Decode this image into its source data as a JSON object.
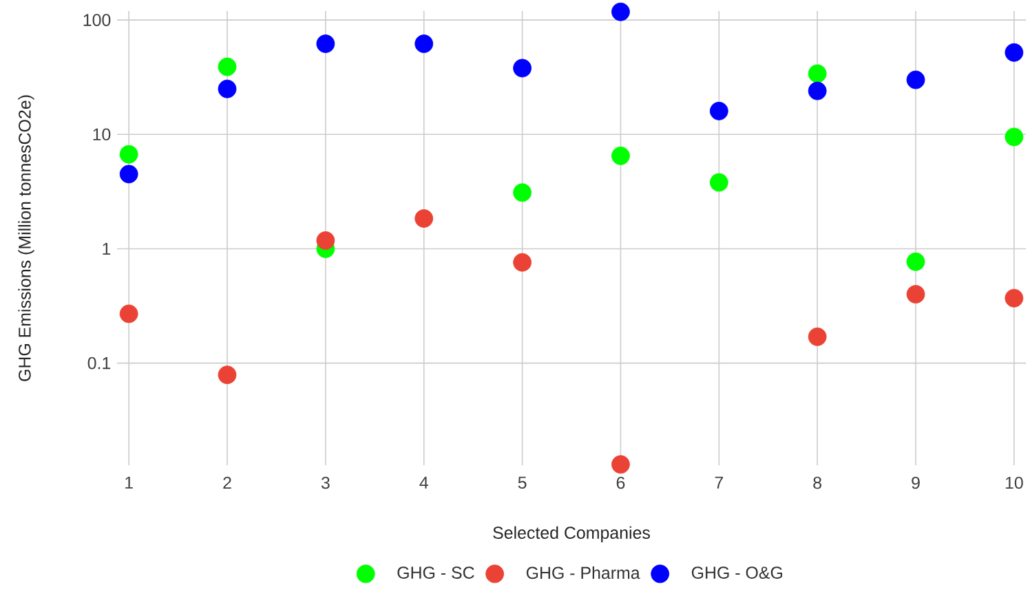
{
  "chart_data": {
    "type": "scatter",
    "xlabel": "Selected Companies",
    "ylabel": "GHG Emissions (Million tonnesCO2e)",
    "categories": [
      "1",
      "2",
      "3",
      "4",
      "5",
      "6",
      "7",
      "8",
      "9",
      "10"
    ],
    "series": [
      {
        "name": "GHG - SC",
        "color": "#00ff00",
        "values": [
          6.7,
          39,
          1.0,
          null,
          3.1,
          6.5,
          3.8,
          34,
          0.77,
          9.5
        ]
      },
      {
        "name": "GHG - Pharma",
        "color": "#ea4335",
        "values": [
          0.27,
          0.079,
          1.18,
          1.84,
          0.76,
          0.013,
          null,
          0.17,
          0.4,
          0.37
        ]
      },
      {
        "name": "GHG - O&G",
        "color": "#0000ff",
        "values": [
          4.5,
          25,
          62,
          62,
          38,
          118,
          16,
          24,
          30,
          52
        ]
      }
    ],
    "log": "y",
    "ylim": [
      0.0128,
      120
    ],
    "yticks": [
      0.1,
      1,
      10,
      100
    ],
    "grid": true,
    "legend": "bottom",
    "marker": "circle"
  }
}
